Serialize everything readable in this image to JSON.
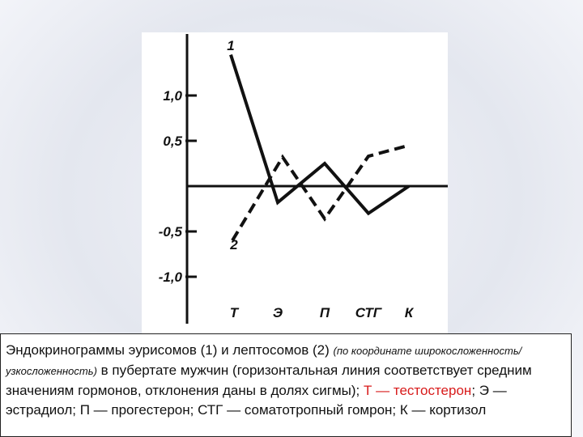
{
  "chart_data": {
    "type": "line",
    "categories": [
      "Т",
      "Э",
      "П",
      "СТГ",
      "К"
    ],
    "y_ticks": [
      "1,0",
      "0,5",
      "-0,5",
      "-1,0"
    ],
    "ylim": [
      -1.5,
      1.65
    ],
    "series": [
      {
        "name": "1",
        "style": "solid",
        "values": [
          1.45,
          -0.18,
          0.25,
          -0.3,
          0.0
        ]
      },
      {
        "name": "2",
        "style": "dashed",
        "values": [
          -0.6,
          0.32,
          -0.36,
          0.33,
          0.45
        ]
      }
    ],
    "series_values_note": "2 plotted between start label and Э"
  },
  "caption": {
    "part1": "Эндокринограммы эурисомов (1) и лептосомов (2)",
    "part2_small": "(по координате широкосложенность/узкосложенность)",
    "part3": "в пубертате мужчин (горизонтальная линия соответствует средним значениям гормонов, отклонения даны в долях сигмы);",
    "part4_red": "Т — тестостерон",
    "part5": "; Э — эстрадиол; П — прогестерон; СТГ — соматотропный гомрон; К — кортизол"
  },
  "colors": {
    "line": "#111111",
    "highlight": "#d81b1b"
  }
}
